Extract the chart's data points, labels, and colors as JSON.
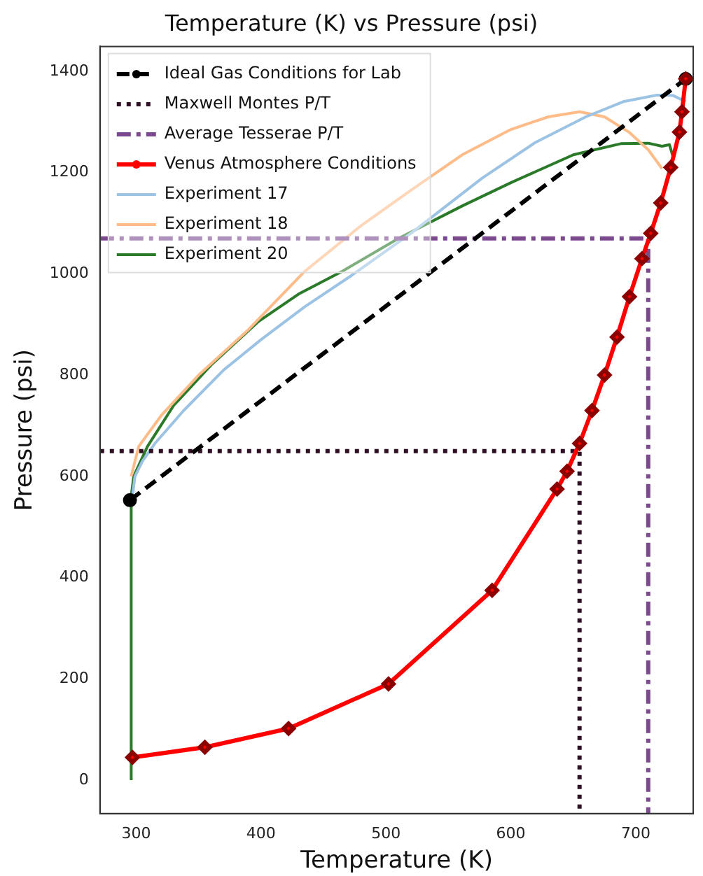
{
  "chart_data": {
    "type": "line",
    "title": "Temperature (K) vs Pressure (psi)",
    "xlabel": "Temperature (K)",
    "ylabel": "Pressure (psi)",
    "xlim": [
      271,
      746
    ],
    "xticks": [
      300,
      400,
      500,
      600,
      700
    ],
    "ylim": [
      -66,
      1449
    ],
    "yticks": [
      0,
      200,
      400,
      600,
      800,
      1000,
      1200,
      1400
    ],
    "grid": false,
    "legend": "top left",
    "series": [
      {
        "name": "Ideal Gas Conditions for Lab",
        "color": "#000000",
        "line_style": "dashed",
        "marker": "circle",
        "x": [
          295,
          740
        ],
        "values": [
          553,
          1385
        ]
      },
      {
        "name": "Maxwell Montes P/T",
        "color": "#2e0f24",
        "line_style": "dotted",
        "marker": "none",
        "x": [
          271,
          655,
          655
        ],
        "values": [
          650,
          650,
          -66
        ]
      },
      {
        "name": "Average Tesserae P/T",
        "color": "#7b4a8e",
        "line_style": "dashdot",
        "marker": "none",
        "x": [
          271,
          710,
          710
        ],
        "values": [
          1070,
          1070,
          -66
        ]
      },
      {
        "name": "Venus Atmosphere Conditions",
        "color": "#ff0000",
        "line_style": "solid",
        "marker": "diamond",
        "x": [
          297,
          355,
          422,
          502,
          585,
          637,
          645,
          655,
          665,
          675,
          685,
          695,
          705,
          712,
          720,
          728,
          735,
          737,
          740
        ],
        "values": [
          45,
          65,
          102,
          190,
          375,
          575,
          610,
          665,
          730,
          800,
          875,
          955,
          1030,
          1080,
          1140,
          1210,
          1280,
          1320,
          1385
        ]
      },
      {
        "name": "Experiment 17",
        "color": "#9cc3e4",
        "line_style": "solid",
        "marker": "none",
        "x": [
          297,
          299,
          305,
          315,
          338,
          370,
          400,
          435,
          472,
          520,
          577,
          620,
          660,
          690,
          717,
          730,
          740
        ],
        "values": [
          560,
          600,
          630,
          665,
          730,
          810,
          870,
          935,
          996,
          1080,
          1189,
          1260,
          1310,
          1340,
          1353,
          1352,
          1340
        ]
      },
      {
        "name": "Experiment 18",
        "color": "#ffbb88",
        "line_style": "solid",
        "marker": "none",
        "x": [
          296,
          302,
          320,
          350,
          390,
          435,
          480,
          520,
          561,
          600,
          630,
          655,
          675,
          695,
          710,
          721
        ],
        "values": [
          600,
          659,
          720,
          800,
          890,
          1005,
          1095,
          1165,
          1235,
          1285,
          1310,
          1320,
          1310,
          1279,
          1245,
          1208
        ]
      },
      {
        "name": "Experiment 20",
        "color": "#2a7a2a",
        "line_style": "solid",
        "marker": "none",
        "x": [
          296,
          296,
          298,
          309,
          330,
          360,
          398,
          430,
          465,
          510,
          561,
          600,
          650,
          688,
          710,
          721,
          727,
          730
        ],
        "values": [
          0,
          560,
          600,
          659,
          740,
          820,
          906,
          960,
          1005,
          1070,
          1134,
          1180,
          1235,
          1257,
          1258,
          1252,
          1255,
          1230
        ]
      }
    ]
  }
}
